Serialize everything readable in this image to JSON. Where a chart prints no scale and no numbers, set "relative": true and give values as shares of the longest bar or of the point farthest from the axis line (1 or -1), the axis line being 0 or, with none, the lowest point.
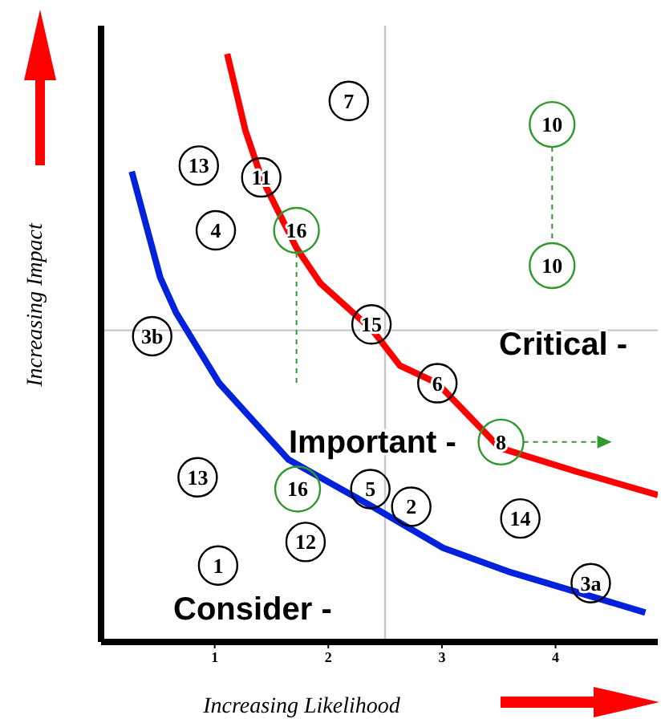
{
  "chart_data": {
    "type": "scatter",
    "relative": true,
    "xlabel": "Increasing Likelihood",
    "ylabel": "Increasing Impact",
    "xlim": [
      0,
      4.9
    ],
    "xticks": [
      1,
      2,
      3,
      4
    ],
    "tick_labels": "x",
    "grid": false,
    "legend": false,
    "annotations": [
      "Critical -",
      "Important -",
      "Consider -",
      {
        "text": "7",
        "x": 2.18,
        "y": 0.92
      },
      {
        "text": "10",
        "x": 3.97,
        "y": 0.88
      },
      {
        "text": "10",
        "x": 3.97,
        "y": 0.64
      },
      {
        "text": "13",
        "x": 0.86,
        "y": 0.81
      },
      {
        "text": "11",
        "x": 1.41,
        "y": 0.79
      },
      {
        "text": "4",
        "x": 1.01,
        "y": 0.7
      },
      {
        "text": "16",
        "x": 1.72,
        "y": 0.7
      },
      {
        "text": "15",
        "x": 2.38,
        "y": 0.54
      },
      {
        "text": "3b",
        "x": 0.45,
        "y": 0.52
      },
      {
        "text": "6",
        "x": 2.96,
        "y": 0.44
      },
      {
        "text": "8",
        "x": 3.52,
        "y": 0.34
      },
      {
        "text": "13",
        "x": 0.85,
        "y": 0.28
      },
      {
        "text": "16",
        "x": 1.73,
        "y": 0.26
      },
      {
        "text": "5",
        "x": 2.37,
        "y": 0.26
      },
      {
        "text": "2",
        "x": 2.73,
        "y": 0.23
      },
      {
        "text": "14",
        "x": 3.69,
        "y": 0.21
      },
      {
        "text": "12",
        "x": 1.8,
        "y": 0.17
      },
      {
        "text": "1",
        "x": 1.03,
        "y": 0.13
      },
      {
        "text": "3a",
        "x": 4.31,
        "y": 0.1
      }
    ],
    "ref_lines": [
      {
        "axis": "x",
        "value": 2.5,
        "color": "#c8c8c8"
      },
      {
        "axis": "y",
        "value": 0.53,
        "color": "#c8c8c8"
      }
    ],
    "series": [
      {
        "type": "scatter",
        "x": [
          2.18,
          3.97,
          3.97,
          0.86,
          1.41,
          1.01,
          1.72,
          2.38,
          0.45,
          2.96,
          3.52,
          0.85,
          1.73,
          2.37,
          2.73,
          3.69,
          1.8,
          1.03,
          4.31
        ],
        "values": [
          0.92,
          0.88,
          0.64,
          0.81,
          0.79,
          0.7,
          0.7,
          0.54,
          0.52,
          0.44,
          0.34,
          0.28,
          0.26,
          0.26,
          0.23,
          0.21,
          0.17,
          0.13,
          0.1
        ],
        "colors": [
          "#000000",
          "#2e9a2e",
          "#2e9a2e",
          "#000000",
          "#000000",
          "#000000",
          "#2e9a2e",
          "#000000",
          "#000000",
          "#000000",
          "#2e9a2e",
          "#000000",
          "#2e9a2e",
          "#000000",
          "#000000",
          "#000000",
          "#000000",
          "#000000",
          "#000000"
        ]
      },
      {
        "type": "line",
        "color": "#ff0000",
        "x": [
          1.11,
          1.27,
          1.41,
          1.72,
          1.93,
          2.39,
          2.63,
          2.96,
          3.51,
          4.18,
          4.9
        ],
        "values": [
          1,
          0.87,
          0.79,
          0.67,
          0.61,
          0.53,
          0.47,
          0.44,
          0.33,
          0.29,
          0.25
        ]
      },
      {
        "type": "line",
        "color": "#0022dd",
        "x": [
          0.27,
          0.52,
          0.66,
          1.04,
          1.65,
          2.39,
          3.01,
          3.58,
          4.79
        ],
        "values": [
          0.8,
          0.62,
          0.56,
          0.44,
          0.31,
          0.23,
          0.16,
          0.12,
          0.05
        ]
      }
    ]
  }
}
